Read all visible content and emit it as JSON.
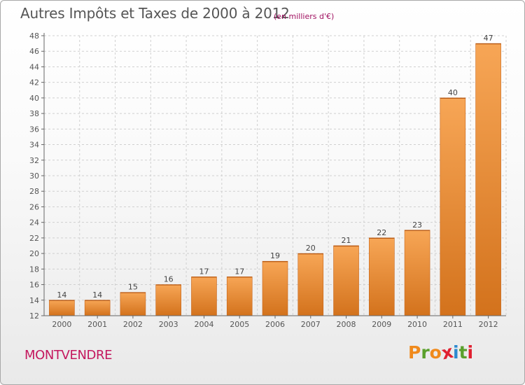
{
  "title": "Autres Impôts et Taxes de 2000 à 2012",
  "unit": "(en milliers d'€)",
  "place": "MONTVENDRE",
  "logo": {
    "letters": [
      "P",
      "r",
      "o",
      "x",
      "i",
      "t",
      "i"
    ],
    "colors": [
      "#f08a1c",
      "#5aa02c",
      "#f08a1c",
      "#e02030",
      "#2c8ad0",
      "#5aa02c",
      "#e02030"
    ]
  },
  "colors": {
    "bar_light": "#f7a656",
    "bar_dark": "#d3721c",
    "grid": "#d0d0d0"
  },
  "chart_data": {
    "type": "bar",
    "categories": [
      "2000",
      "2001",
      "2002",
      "2003",
      "2004",
      "2005",
      "2006",
      "2007",
      "2008",
      "2009",
      "2010",
      "2011",
      "2012"
    ],
    "values": [
      14,
      14,
      15,
      16,
      17,
      17,
      19,
      20,
      21,
      22,
      23,
      40,
      47
    ],
    "ylim": [
      12,
      48
    ],
    "yticks": [
      12,
      14,
      16,
      18,
      20,
      22,
      24,
      26,
      28,
      30,
      32,
      34,
      36,
      38,
      40,
      42,
      44,
      46,
      48
    ],
    "grid": true,
    "legend": "none"
  }
}
